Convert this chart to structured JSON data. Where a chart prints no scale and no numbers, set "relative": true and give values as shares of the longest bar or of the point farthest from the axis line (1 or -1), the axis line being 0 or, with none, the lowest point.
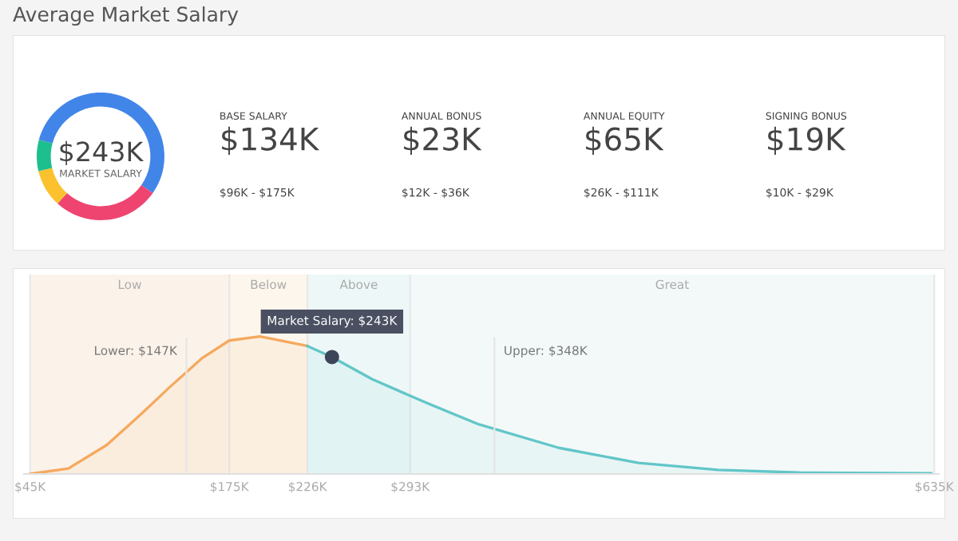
{
  "chart_data": [
    {
      "type": "donut",
      "title": "Average Market Salary",
      "categories": [
        null,
        null,
        null,
        null
      ],
      "values": [
        55.6,
        27.0,
        9.5,
        7.9
      ],
      "colors": [
        "#4285e8",
        "#ef4470",
        "#fbc12e",
        "#1dbf8e"
      ],
      "annotations": [
        "$243K",
        "MARKET SALARY"
      ],
      "legend": false
    },
    {
      "type": "other",
      "annotations": [
        "BASE SALARY",
        "$134K",
        "$96K - $175K",
        "ANNUAL BONUS",
        "$23K",
        "$12K - $36K",
        "ANNUAL EQUITY",
        "$65K",
        "$26K - $111K",
        "SIGNING BONUS",
        "$19K",
        "$10K - $29K"
      ]
    },
    {
      "type": "area",
      "relative": true,
      "series": [
        {
          "color": "#f5a95e",
          "x": [
            45,
            70,
            95,
            116,
            136,
            157,
            175,
            195,
            226
          ],
          "values": [
            0,
            0.04,
            0.21,
            0.42,
            0.63,
            0.84,
            0.97,
            1,
            0.93
          ]
        },
        {
          "color": "#62c6c8",
          "x": [
            226,
            242,
            268,
            303,
            338,
            390,
            442,
            494,
            547,
            633
          ],
          "values": [
            0.93,
            0.85,
            0.69,
            0.52,
            0.36,
            0.19,
            0.08,
            0.03,
            0.01,
            0.005
          ]
        },
        {
          "type": "scatter",
          "color": "#3d4659",
          "x": [
            242
          ],
          "values": [
            0.85
          ],
          "marker": "circle"
        }
      ],
      "xlim": [
        41,
        638
      ],
      "xticks": [
        {
          "value": 45,
          "label": "$45K"
        },
        {
          "value": 175,
          "label": "$175K"
        },
        {
          "value": 226,
          "label": "$226K"
        },
        {
          "value": 293,
          "label": "$293K"
        },
        {
          "value": 635,
          "label": "$635K"
        }
      ],
      "bands": [
        {
          "axis": "x",
          "from": 45,
          "to": 175,
          "label": "Low",
          "color": "#fbf3ea"
        },
        {
          "axis": "x",
          "from": 175,
          "to": 226,
          "label": "Below",
          "color": "#fcf6ec"
        },
        {
          "axis": "x",
          "from": 226,
          "to": 293,
          "label": "Above",
          "color": "#edf7f7"
        },
        {
          "axis": "x",
          "from": 293,
          "to": 635,
          "label": "Great",
          "color": "#f3f9f9"
        }
      ],
      "ref_lines": [
        {
          "axis": "x",
          "value": 147,
          "label": "Lower: $147K"
        },
        {
          "axis": "x",
          "value": 348,
          "label": "Upper: $348K"
        }
      ],
      "annotations": [
        {
          "text": "Market Salary: $243K",
          "x": 242,
          "y": 0.85
        }
      ],
      "grid": "x",
      "legend": false,
      "tick_labels": "x"
    }
  ]
}
